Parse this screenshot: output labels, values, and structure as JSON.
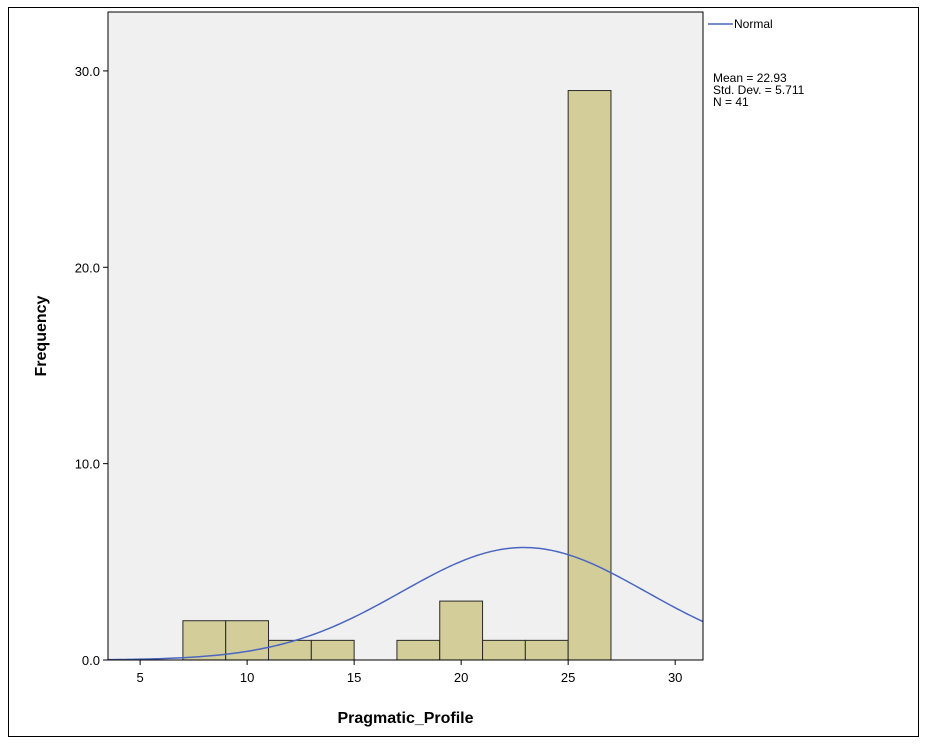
{
  "chart_data": {
    "type": "bar",
    "xlabel": "Pragmatic_Profile",
    "ylabel": "Frequency",
    "xlim": [
      3.5,
      31.3
    ],
    "ylim": [
      0,
      33
    ],
    "x_ticks": [
      {
        "value": 5,
        "label": "5"
      },
      {
        "value": 10,
        "label": "10"
      },
      {
        "value": 15,
        "label": "15"
      },
      {
        "value": 20,
        "label": "20"
      },
      {
        "value": 25,
        "label": "25"
      },
      {
        "value": 30,
        "label": "30"
      }
    ],
    "y_ticks": [
      {
        "value": 0,
        "label": "0.0"
      },
      {
        "value": 10,
        "label": "10.0"
      },
      {
        "value": 20,
        "label": "20.0"
      },
      {
        "value": 30,
        "label": "30.0"
      }
    ],
    "bins": [
      {
        "start": 7,
        "end": 9,
        "count": 2
      },
      {
        "start": 9,
        "end": 11,
        "count": 2
      },
      {
        "start": 11,
        "end": 13,
        "count": 1
      },
      {
        "start": 13,
        "end": 15,
        "count": 1
      },
      {
        "start": 17,
        "end": 19,
        "count": 1
      },
      {
        "start": 19,
        "end": 21,
        "count": 3
      },
      {
        "start": 21,
        "end": 23,
        "count": 1
      },
      {
        "start": 23,
        "end": 25,
        "count": 1
      },
      {
        "start": 25,
        "end": 27,
        "count": 29
      }
    ],
    "normal_curve": {
      "name": "Normal",
      "mean": 22.93,
      "std": 5.711,
      "n": 41,
      "bin_width": 2
    },
    "legend": {
      "entry": "Normal",
      "stats": [
        "Mean = 22.93",
        "Std. Dev. = 5.711",
        "N = 41"
      ],
      "placement": "top-right"
    },
    "grid": false,
    "colors": {
      "bar_fill": "#d3cd9a",
      "bar_stroke": "#2a2a2a",
      "curve": "#4a66c0",
      "plot_bg": "#f0f0f0"
    }
  }
}
